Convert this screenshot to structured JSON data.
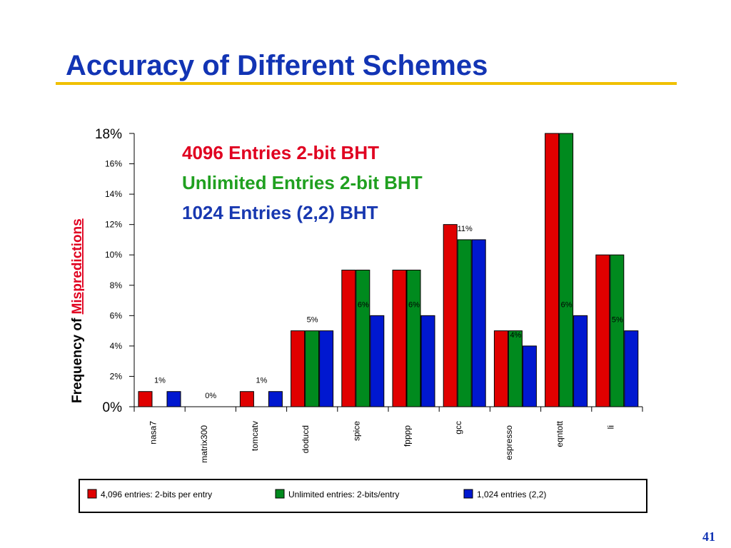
{
  "slide": {
    "title": "Accuracy of Different Schemes",
    "page_number": "41"
  },
  "colors": {
    "title": "#1234b4",
    "rule": "#f0c000",
    "series": [
      "#e00000",
      "#008a1e",
      "#0018d0"
    ],
    "overlay": [
      "#e00020",
      "#20a020",
      "#1838b0"
    ]
  },
  "chart_data": {
    "type": "bar",
    "ylabel_prefix": "Frequency of ",
    "ylabel_emphasis": "Mispredictions",
    "ylim": [
      0,
      18
    ],
    "yticks": [
      "0%",
      "2%",
      "4%",
      "6%",
      "8%",
      "10%",
      "12%",
      "14%",
      "16%",
      "18%"
    ],
    "categories": [
      "nasa7",
      "matrix300",
      "tomcatv",
      "doducd",
      "spice",
      "fpppp",
      "gcc",
      "espresso",
      "eqntott",
      "li"
    ],
    "series": [
      {
        "name": "4,096 entries: 2-bits per entry",
        "values": [
          1,
          0,
          1,
          5,
          9,
          9,
          12,
          5,
          18,
          10
        ]
      },
      {
        "name": "Unlimited entries: 2-bits/entry",
        "values": [
          0,
          0,
          0,
          5,
          9,
          9,
          11,
          5,
          18,
          10
        ]
      },
      {
        "name": "1,024 entries (2,2)",
        "values": [
          1,
          0,
          1,
          5,
          6,
          6,
          11,
          4,
          6,
          5
        ]
      }
    ],
    "data_labels": [
      "1%",
      "0%",
      "1%",
      "5%",
      "6%",
      "6%",
      "11%",
      "4%",
      "6%",
      "5%"
    ],
    "overlay_legend": [
      "4096 Entries 2-bit BHT",
      "Unlimited Entries 2-bit BHT",
      "1024 Entries (2,2) BHT"
    ],
    "legend_position": "bottom",
    "grid": false
  }
}
